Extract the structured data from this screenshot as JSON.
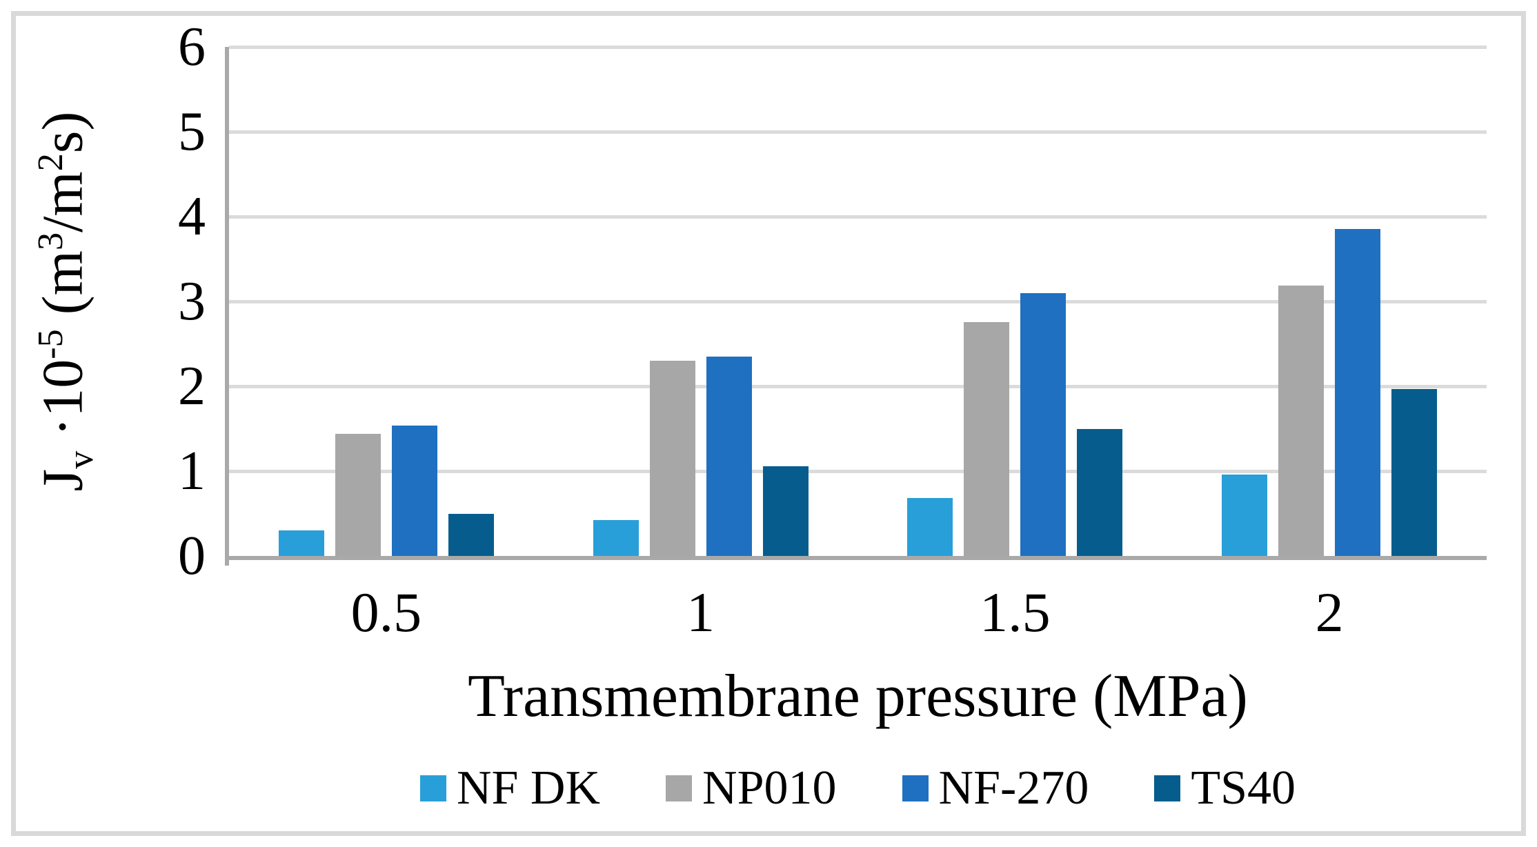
{
  "figure": {
    "background_color": "#FFFFFF",
    "border_color": "#D9D9D9",
    "gridline_color": "#DBDBDB",
    "axis_line_color": "#A9A9A9",
    "text_color": "#000000"
  },
  "y_axis": {
    "ticks": [
      "6",
      "5",
      "4",
      "3",
      "2",
      "1",
      "0"
    ],
    "title_parts": {
      "main": "J",
      "sub": "v",
      "mul": " ·10",
      "exp": "-5",
      "unit_open": " (m",
      "unit_sup1": "3",
      "unit_slash": "/m",
      "unit_sup2": "2",
      "unit_close": "s)"
    }
  },
  "x_axis": {
    "ticks": [
      "0.5",
      "1",
      "1.5",
      "2"
    ],
    "title": "Transmembrane pressure (MPa)"
  },
  "legend": {
    "position": "bottom",
    "items": [
      {
        "label": "NF DK",
        "color": "#289FD9"
      },
      {
        "label": "NP010",
        "color": "#A7A7A7"
      },
      {
        "label": "NF-270",
        "color": "#1F70C1"
      },
      {
        "label": "TS40",
        "color": "#065D8D"
      }
    ]
  },
  "chart_data": {
    "type": "bar",
    "categories": [
      "0.5",
      "1",
      "1.5",
      "2"
    ],
    "series": [
      {
        "name": "NF DK",
        "color": "#289FD9",
        "values": [
          0.3,
          0.42,
          0.68,
          0.96
        ]
      },
      {
        "name": "NP010",
        "color": "#A7A7A7",
        "values": [
          1.44,
          2.3,
          2.76,
          3.19
        ]
      },
      {
        "name": "NF-270",
        "color": "#1F70C1",
        "values": [
          1.54,
          2.35,
          3.1,
          3.85
        ]
      },
      {
        "name": "TS40",
        "color": "#065D8D",
        "values": [
          0.5,
          1.06,
          1.5,
          1.97
        ]
      }
    ],
    "title": "",
    "xlabel": "Transmembrane pressure (MPa)",
    "ylabel": "Jv ·10-5 (m3/m2s)",
    "ylim": [
      0,
      6
    ],
    "ytick_step": 1,
    "grid": "horizontal",
    "legend_position": "bottom"
  }
}
